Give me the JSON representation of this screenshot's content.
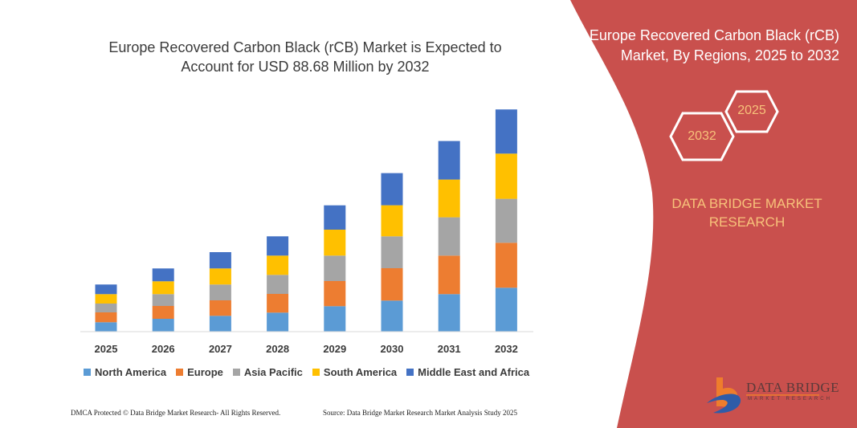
{
  "left_title": "Europe Recovered Carbon Black (rCB) Market is Expected to Account for USD 88.68 Million by 2032",
  "right_title": "Europe Recovered Carbon Black (rCB) Market, By Regions, 2025 to 2032",
  "hexagons": {
    "start": "2025",
    "end": "2032"
  },
  "brand": "DATA BRIDGE MARKET RESEARCH",
  "logo": {
    "name": "DATA BRIDGE",
    "sub": "MARKET RESEARCH"
  },
  "footer": {
    "left": "DMCA Protected © Data Bridge Market Research- All Rights Reserved.",
    "right": "Source: Data Bridge Market Research Market Analysis Study 2025"
  },
  "colors": {
    "panel": "#c9504d",
    "accent_text": "#f7c27a"
  },
  "chart_data": {
    "type": "bar",
    "stacked": true,
    "title": "Europe Recovered Carbon Black (rCB) Market is Expected to Account for USD 88.68 Million by 2032",
    "xlabel": "",
    "ylabel": "",
    "y_axis_shown": false,
    "grid": false,
    "legend_position": "bottom",
    "ylim": [
      0,
      280
    ],
    "categories": [
      "2025",
      "2026",
      "2027",
      "2028",
      "2029",
      "2030",
      "2031",
      "2032"
    ],
    "series": [
      {
        "name": "North America",
        "color": "#5b9bd5",
        "values": [
          11.7,
          16,
          19.7,
          23.7,
          31.7,
          38.7,
          46.7,
          54.7
        ]
      },
      {
        "name": "Europe",
        "color": "#ed7d31",
        "values": [
          12.3,
          16,
          19.3,
          23.3,
          31.3,
          40.3,
          48,
          56
        ]
      },
      {
        "name": "Asia Pacific",
        "color": "#a5a5a5",
        "values": [
          11,
          14.7,
          19.7,
          23.7,
          31.7,
          39.7,
          47.7,
          54.7
        ]
      },
      {
        "name": "South America",
        "color": "#ffc000",
        "values": [
          11.7,
          16,
          20,
          24,
          32.3,
          38.7,
          47,
          56.3
        ]
      },
      {
        "name": "Middle East and Africa",
        "color": "#4472c4",
        "values": [
          12,
          16,
          20.3,
          24,
          30.3,
          40,
          48,
          55
        ]
      }
    ]
  }
}
